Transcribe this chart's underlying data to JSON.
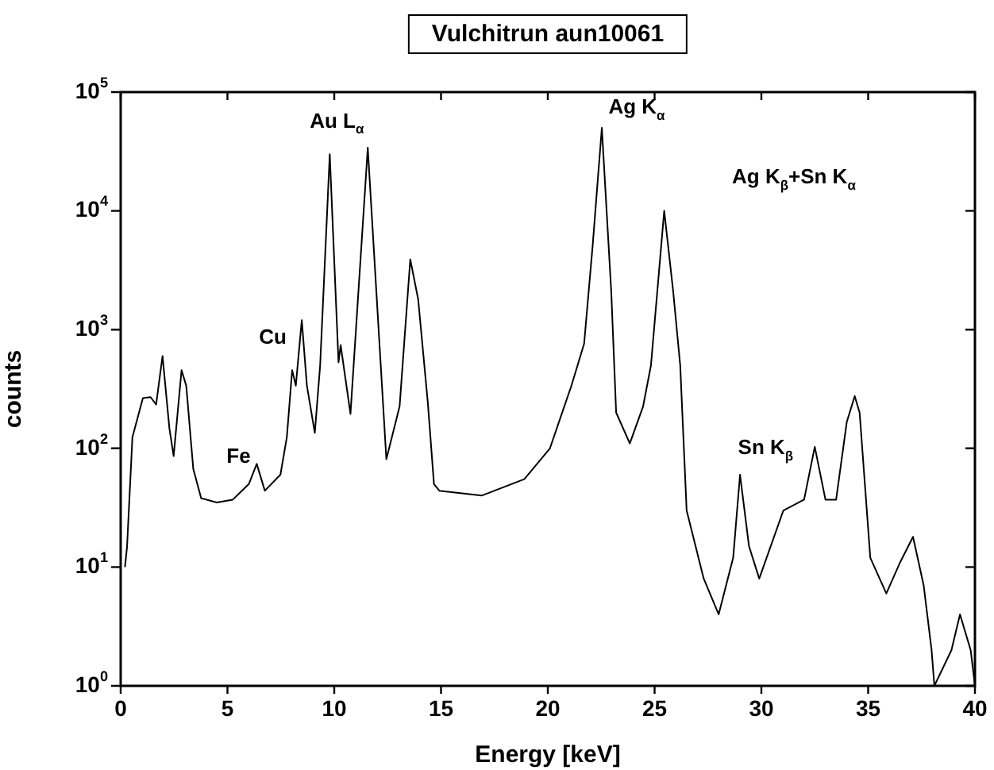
{
  "chart_data": {
    "type": "line",
    "title": "Vulchitrun aun10061",
    "xlabel": "Energy [keV]",
    "ylabel": "counts",
    "log": "y",
    "grid": false,
    "legend": false,
    "marker": "none",
    "line_style": "solid",
    "xlim": [
      0,
      40
    ],
    "xticks": [
      0,
      5,
      10,
      15,
      20,
      25,
      30,
      35,
      40
    ],
    "ylim": [
      1,
      100000
    ],
    "yticks": [
      {
        "value": 1,
        "label": "10$^{0}$"
      },
      {
        "value": 10,
        "label": "10$^{1}$"
      },
      {
        "value": 100,
        "label": "10$^{2}$"
      },
      {
        "value": 1000,
        "label": "10$^{3}$"
      },
      {
        "value": 10000,
        "label": "10$^{4}$"
      },
      {
        "value": 100000,
        "label": "10$^{5}$"
      }
    ],
    "series": [
      {
        "color": "#000000",
        "x": [
          0.2,
          0.3,
          0.55,
          1.04,
          1.4,
          1.66,
          1.96,
          2.28,
          2.48,
          2.85,
          3.07,
          3.4,
          3.77,
          4.5,
          5.25,
          6.0,
          6.37,
          6.75,
          7.48,
          7.78,
          8.03,
          8.2,
          8.48,
          8.72,
          9.09,
          9.34,
          9.79,
          10.2,
          10.3,
          10.76,
          11.57,
          12.44,
          13.06,
          13.56,
          13.93,
          14.38,
          14.67,
          14.92,
          16.9,
          18.9,
          20.1,
          21.1,
          21.7,
          22.1,
          22.53,
          22.97,
          23.2,
          23.84,
          24.46,
          24.83,
          25.45,
          25.87,
          26.2,
          26.5,
          27.3,
          28.0,
          28.68,
          29.0,
          29.42,
          29.9,
          31.03,
          32.0,
          32.5,
          33.0,
          33.5,
          34.0,
          34.37,
          34.6,
          35.1,
          35.85,
          36.5,
          37.1,
          37.6,
          37.97,
          38.1,
          38.9,
          39.3,
          39.8,
          40
        ],
        "values": [
          10,
          15,
          124,
          265,
          270,
          234,
          600,
          148,
          86,
          455,
          337,
          67,
          38,
          35,
          37,
          50,
          74,
          44,
          60,
          124,
          455,
          337,
          1200,
          337,
          135,
          500,
          30000,
          530,
          740,
          195,
          34000,
          81,
          225,
          3900,
          1800,
          245,
          50,
          44,
          40,
          55,
          100,
          335,
          760,
          5100,
          50000,
          2100,
          200,
          110,
          225,
          500,
          10000,
          2100,
          500,
          30,
          8,
          4,
          12,
          60,
          15,
          8,
          30,
          37,
          103,
          37,
          37,
          167,
          275,
          200,
          12,
          6,
          11,
          18,
          7,
          2,
          1,
          2,
          4,
          2,
          1
        ]
      }
    ],
    "annotations": [
      "Au L$_{α}$",
      "Ag K$_{α}$",
      "Ag K$_{β}$+Sn K$_{α}$",
      "Sn K$_{β}$",
      "Cu",
      "Fe"
    ]
  }
}
